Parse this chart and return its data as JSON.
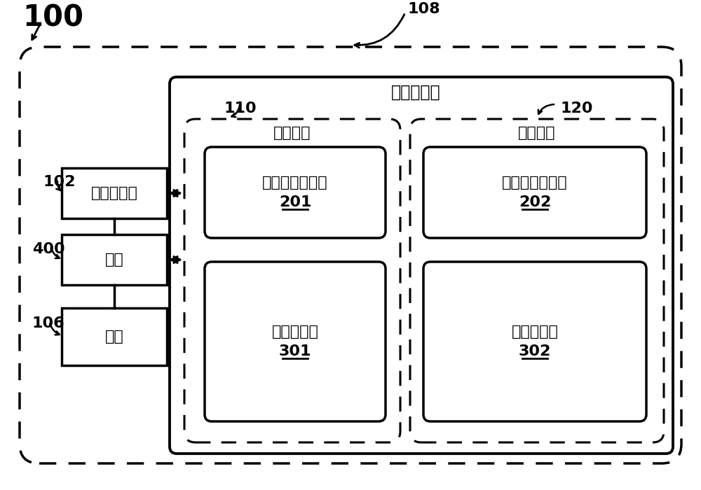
{
  "bg_color": "#ffffff",
  "label_100": "100",
  "label_108": "108",
  "label_102": "102",
  "label_400": "400",
  "label_106": "106",
  "label_110": "110",
  "label_120": "120",
  "label_gpu": "图形处理器",
  "label_chip1": "第一芯片",
  "label_chip2": "第二芯片",
  "label_cpu": "中央处理器",
  "label_mem": "内存",
  "label_sw": "软件",
  "label_cmd1": "第一命令处理器",
  "label_cmd1_num": "201",
  "label_cmd2": "第二命令处理器",
  "label_cmd2_num": "202",
  "label_core1": "第一核集群",
  "label_core1_num": "301",
  "label_core2": "第二核集群",
  "label_core2_num": "302"
}
